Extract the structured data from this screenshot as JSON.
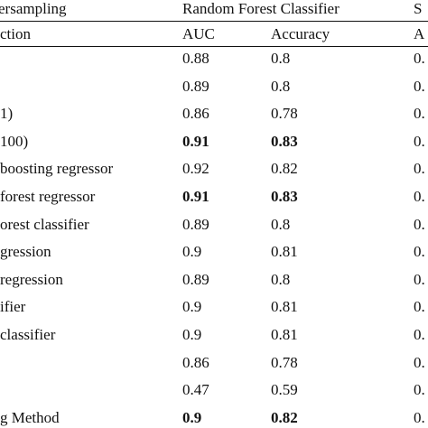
{
  "header": {
    "group_left": "ersampling",
    "group_rf": "Random Forest Classifier",
    "group_right": "S",
    "col_left": "ction",
    "col_auc": "AUC",
    "col_acc": "Accuracy",
    "col_right": "A"
  },
  "rows": [
    {
      "label": "",
      "auc": "0.88",
      "acc": "0.8",
      "right": "0.",
      "bold": false
    },
    {
      "label": "",
      "auc": "0.89",
      "acc": "0.8",
      "right": "0.",
      "bold": false
    },
    {
      "label": "1)",
      "auc": "0.86",
      "acc": "0.78",
      "right": "0.",
      "bold": false
    },
    {
      "label": "100)",
      "auc": "0.91",
      "acc": "0.83",
      "right": "0.",
      "bold": true
    },
    {
      "label": "boosting regressor",
      "auc": "0.92",
      "acc": "0.82",
      "right": "0.",
      "bold": false
    },
    {
      "label": "forest regressor",
      "auc": "0.91",
      "acc": "0.83",
      "right": "0.",
      "bold": true
    },
    {
      "label": "orest classifier",
      "auc": "0.89",
      "acc": "0.8",
      "right": "0.",
      "bold": false
    },
    {
      "label": "gression",
      "auc": "0.9",
      "acc": "0.81",
      "right": "0.",
      "bold": false
    },
    {
      "label": "regression",
      "auc": "0.89",
      "acc": "0.8",
      "right": "0.",
      "bold": false
    },
    {
      "label": "ifier",
      "auc": "0.9",
      "acc": "0.81",
      "right": "0.",
      "bold": false
    },
    {
      "label": "classifier",
      "auc": "0.9",
      "acc": "0.81",
      "right": "0.",
      "bold": false
    },
    {
      "label": "",
      "auc": "0.86",
      "acc": "0.78",
      "right": "0.",
      "bold": false
    },
    {
      "label": "",
      "auc": "0.47",
      "acc": "0.59",
      "right": "0.",
      "bold": false
    },
    {
      "label": "g Method",
      "auc": "0.9",
      "acc": "0.82",
      "right": "0.",
      "bold": true
    }
  ]
}
